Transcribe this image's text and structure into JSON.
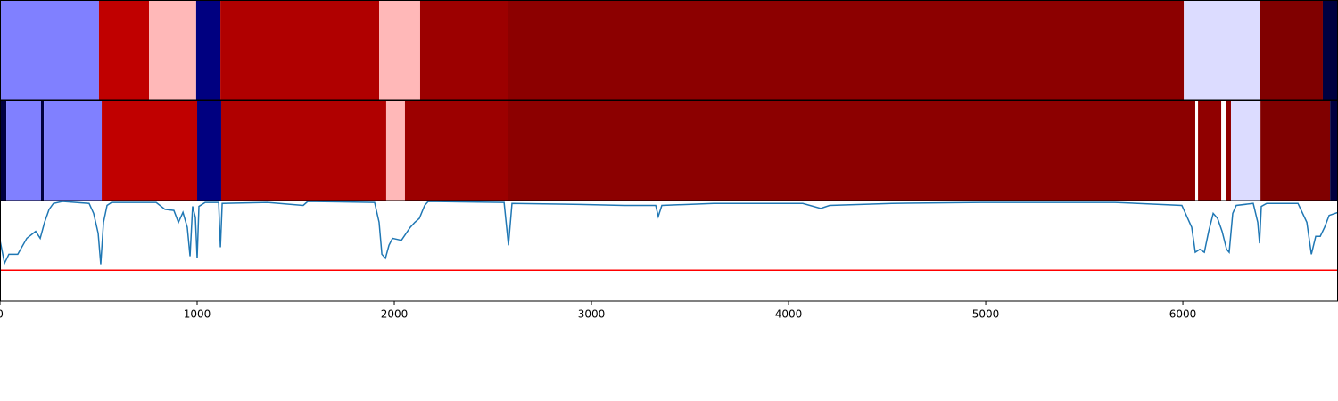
{
  "chart_data": {
    "type": "segments",
    "xlim": [
      0,
      6787
    ],
    "xticks": [
      0,
      1000,
      2000,
      3000,
      4000,
      5000,
      6000
    ],
    "rows": [
      {
        "edges": [
          0,
          502,
          756,
          995,
          1118,
          1923,
          2131,
          2579,
          6005,
          6389,
          6710,
          6787
        ],
        "colors": [
          "#8080ff",
          "#c00000",
          "#ffb8b8",
          "#000080",
          "#b00000",
          "#ffb8b8",
          "#9c0000",
          "#8c0000",
          "#dcdcff",
          "#800000",
          "#000040"
        ]
      },
      {
        "edges": [
          0,
          32,
          208,
          222,
          516,
          1000,
          1122,
          1959,
          2054,
          2579,
          6063,
          6077,
          6195,
          6217,
          6244,
          6394,
          6747,
          6787
        ],
        "colors": [
          "#000040",
          "#8080ff",
          "#000040",
          "#8080ff",
          "#c00000",
          "#000080",
          "#b00000",
          "#ffb8b8",
          "#9c0000",
          "#8c0000",
          "#ffffff",
          "#900000",
          "#ffffff",
          "#900000",
          "#dcdcff",
          "#800000",
          "#000040"
        ]
      }
    ],
    "ylim": [
      0,
      1
    ],
    "line": {
      "color": "#1f77b4",
      "x": [
        0,
        23,
        45,
        90,
        136,
        181,
        204,
        226,
        249,
        271,
        317,
        452,
        475,
        498,
        511,
        525,
        543,
        566,
        792,
        837,
        882,
        905,
        928,
        950,
        964,
        977,
        991,
        1000,
        1009,
        1041,
        1109,
        1118,
        1127,
        1357,
        1538,
        1561,
        1900,
        1923,
        1937,
        1955,
        1973,
        1991,
        2036,
        2081,
        2104,
        2127,
        2154,
        2172,
        2557,
        2579,
        2597,
        2941,
        3167,
        3326,
        3339,
        3357,
        3620,
        4072,
        4163,
        4208,
        4525,
        4977,
        5656,
        5995,
        6045,
        6063,
        6086,
        6109,
        6131,
        6154,
        6176,
        6199,
        6222,
        6235,
        6253,
        6271,
        6357,
        6380,
        6389,
        6398,
        6425,
        6584,
        6629,
        6652,
        6674,
        6697,
        6719,
        6742,
        6787
      ],
      "values": [
        0.61,
        0.38,
        0.47,
        0.47,
        0.63,
        0.7,
        0.63,
        0.79,
        0.92,
        0.98,
        1.0,
        0.98,
        0.88,
        0.68,
        0.37,
        0.79,
        0.96,
        0.99,
        0.99,
        0.92,
        0.91,
        0.79,
        0.89,
        0.74,
        0.45,
        0.95,
        0.84,
        0.43,
        0.95,
        0.99,
        0.99,
        0.54,
        0.98,
        0.99,
        0.96,
        1.0,
        0.99,
        0.79,
        0.47,
        0.43,
        0.56,
        0.63,
        0.61,
        0.74,
        0.79,
        0.83,
        0.96,
        1.0,
        0.99,
        0.56,
        0.98,
        0.97,
        0.96,
        0.96,
        0.85,
        0.96,
        0.98,
        0.98,
        0.93,
        0.96,
        0.98,
        0.99,
        0.99,
        0.96,
        0.74,
        0.49,
        0.52,
        0.49,
        0.7,
        0.88,
        0.83,
        0.7,
        0.52,
        0.49,
        0.88,
        0.96,
        0.98,
        0.79,
        0.58,
        0.95,
        0.98,
        0.98,
        0.79,
        0.47,
        0.65,
        0.65,
        0.74,
        0.86,
        0.89
      ]
    },
    "threshold": {
      "value": 0.31,
      "color": "#ff0000"
    }
  }
}
